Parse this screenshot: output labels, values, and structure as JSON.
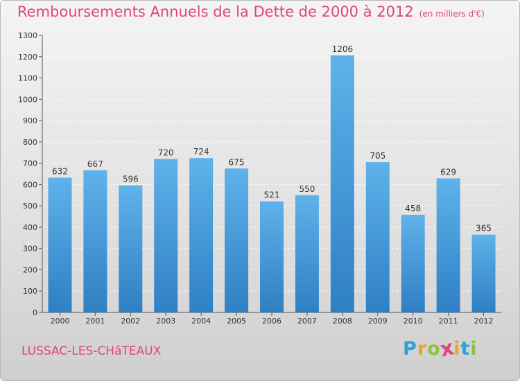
{
  "chart_data": {
    "type": "bar",
    "title": "Remboursements Annuels de la Dette de 2000 à 2012",
    "subtitle": "(en milliers d'€)",
    "categories": [
      "2000",
      "2001",
      "2002",
      "2003",
      "2004",
      "2005",
      "2006",
      "2007",
      "2008",
      "2009",
      "2010",
      "2011",
      "2012"
    ],
    "values": [
      632,
      667,
      596,
      720,
      724,
      675,
      521,
      550,
      1206,
      705,
      458,
      629,
      365
    ],
    "ylim": [
      0,
      1300
    ],
    "yticks": [
      0,
      100,
      200,
      300,
      400,
      500,
      600,
      700,
      800,
      900,
      1000,
      1100,
      1200,
      1300
    ],
    "grid": true,
    "bar_color": "#3b8fd6",
    "bar_color_top": "#5fb2ea"
  },
  "footer": {
    "town": "LUSSAC-LES-CHâTEAUX",
    "logo_letters": [
      "P",
      "r",
      "o",
      "x",
      "i",
      "t",
      "i"
    ],
    "logo_colors": [
      "#2f9fd8",
      "#f0a22e",
      "#8ac43f",
      "#e0457b",
      "#f0a22e",
      "#2f9fd8",
      "#8ac43f"
    ]
  }
}
